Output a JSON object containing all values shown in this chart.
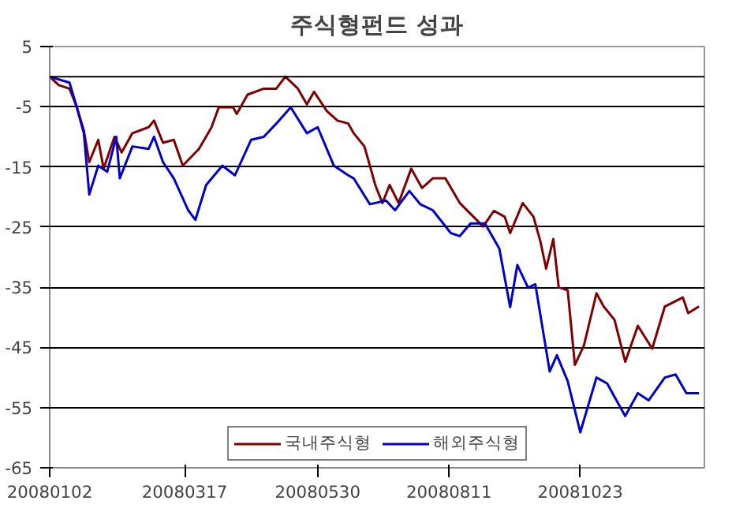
{
  "chart_data": {
    "type": "line",
    "title": "주식형펀드 성과",
    "xlim": [
      "2008-01-02",
      "2008-12-31"
    ],
    "xticks": [
      {
        "value": "2008-01-02",
        "label": "20080102"
      },
      {
        "value": "2008-03-17",
        "label": "20080317"
      },
      {
        "value": "2008-05-30",
        "label": "20080530"
      },
      {
        "value": "2008-08-11",
        "label": "20080811"
      },
      {
        "value": "2008-10-23",
        "label": "20081023"
      }
    ],
    "ylim": [
      -65,
      5
    ],
    "yticks": [
      5,
      -5,
      -15,
      -25,
      -35,
      -45,
      -55,
      -65
    ],
    "grid": "y",
    "legend": "bottom",
    "ref_lines": [
      {
        "axis": "y",
        "value": 0,
        "color": "#000000"
      }
    ],
    "series": [
      {
        "name": "국내주식형",
        "color": "#800000",
        "x": [
          "2008-01-02",
          "2008-01-07",
          "2008-01-13",
          "2008-01-17",
          "2008-01-21",
          "2008-01-24",
          "2008-01-29",
          "2008-02-01",
          "2008-02-07",
          "2008-02-11",
          "2008-02-17",
          "2008-02-26",
          "2008-02-29",
          "2008-03-05",
          "2008-03-11",
          "2008-03-16",
          "2008-03-25",
          "2008-04-01",
          "2008-04-05",
          "2008-04-13",
          "2008-04-15",
          "2008-04-21",
          "2008-04-30",
          "2008-05-07",
          "2008-05-12",
          "2008-05-19",
          "2008-05-24",
          "2008-05-28",
          "2008-06-04",
          "2008-06-10",
          "2008-06-16",
          "2008-06-19",
          "2008-06-25",
          "2008-07-01",
          "2008-07-05",
          "2008-07-09",
          "2008-07-14",
          "2008-07-21",
          "2008-07-27",
          "2008-08-02",
          "2008-08-09",
          "2008-08-17",
          "2008-08-23",
          "2008-08-30",
          "2008-09-05",
          "2008-09-11",
          "2008-09-14",
          "2008-09-21",
          "2008-09-27",
          "2008-10-01",
          "2008-10-04",
          "2008-10-08",
          "2008-10-11",
          "2008-10-16",
          "2008-10-20",
          "2008-10-25",
          "2008-11-01",
          "2008-11-05",
          "2008-11-11",
          "2008-11-17",
          "2008-11-24",
          "2008-12-02",
          "2008-12-09",
          "2008-12-19",
          "2008-12-22",
          "2008-12-28"
        ],
        "values": [
          0,
          -1.4,
          -2,
          -5,
          -9,
          -14.2,
          -10.5,
          -15.3,
          -10,
          -12.6,
          -9.4,
          -8.4,
          -7.3,
          -11,
          -10.5,
          -14.8,
          -12,
          -8.4,
          -5.1,
          -5.1,
          -6.2,
          -3,
          -2,
          -2,
          0,
          -2,
          -4.6,
          -2.5,
          -5.7,
          -7.3,
          -7.8,
          -9.4,
          -11.6,
          -18,
          -21,
          -18,
          -21,
          -15.3,
          -18.5,
          -16.9,
          -16.9,
          -21,
          -22.8,
          -24.9,
          -22.3,
          -23.3,
          -26,
          -21,
          -23.3,
          -27.6,
          -31.9,
          -27,
          -35,
          -35.5,
          -47.9,
          -44.7,
          -36,
          -38.2,
          -40.4,
          -47.4,
          -41.4,
          -45.2,
          -38.2,
          -36.7,
          -39.3,
          -38.2
        ]
      },
      {
        "name": "해외주식형",
        "color": "#0000cc",
        "x": [
          "2008-01-02",
          "2008-01-13",
          "2008-01-17",
          "2008-01-21",
          "2008-01-24",
          "2008-01-29",
          "2008-02-03",
          "2008-02-08",
          "2008-02-10",
          "2008-02-17",
          "2008-02-26",
          "2008-02-29",
          "2008-03-05",
          "2008-03-11",
          "2008-03-19",
          "2008-03-23",
          "2008-03-29",
          "2008-04-07",
          "2008-04-14",
          "2008-04-23",
          "2008-04-30",
          "2008-05-07",
          "2008-05-15",
          "2008-05-24",
          "2008-05-30",
          "2008-06-08",
          "2008-06-16",
          "2008-06-19",
          "2008-06-28",
          "2008-07-07",
          "2008-07-12",
          "2008-07-20",
          "2008-07-26",
          "2008-08-02",
          "2008-08-12",
          "2008-08-17",
          "2008-08-23",
          "2008-08-31",
          "2008-09-08",
          "2008-09-14",
          "2008-09-18",
          "2008-09-24",
          "2008-09-28",
          "2008-10-06",
          "2008-10-10",
          "2008-10-16",
          "2008-10-23",
          "2008-11-01",
          "2008-11-07",
          "2008-11-11",
          "2008-11-17",
          "2008-11-24",
          "2008-11-30",
          "2008-12-09",
          "2008-12-15",
          "2008-12-21",
          "2008-12-28"
        ],
        "values": [
          0,
          -1,
          -5,
          -9.4,
          -19.6,
          -14.8,
          -15.8,
          -10,
          -16.9,
          -11.6,
          -12,
          -10,
          -14.2,
          -16.9,
          -22.2,
          -23.8,
          -18,
          -14.8,
          -16.4,
          -10.5,
          -10,
          -7.8,
          -5.1,
          -9.4,
          -8.4,
          -14.8,
          -16.4,
          -16.9,
          -21.2,
          -20.6,
          -22.2,
          -19,
          -21.2,
          -22.2,
          -26,
          -26.5,
          -24.4,
          -24.4,
          -28.6,
          -38.3,
          -31.3,
          -35.1,
          -34.5,
          -49,
          -46.3,
          -50.6,
          -59.1,
          -50,
          -51,
          -53.2,
          -56.4,
          -52.6,
          -53.8,
          -50,
          -49.5,
          -52.6,
          -52.6
        ]
      }
    ]
  }
}
